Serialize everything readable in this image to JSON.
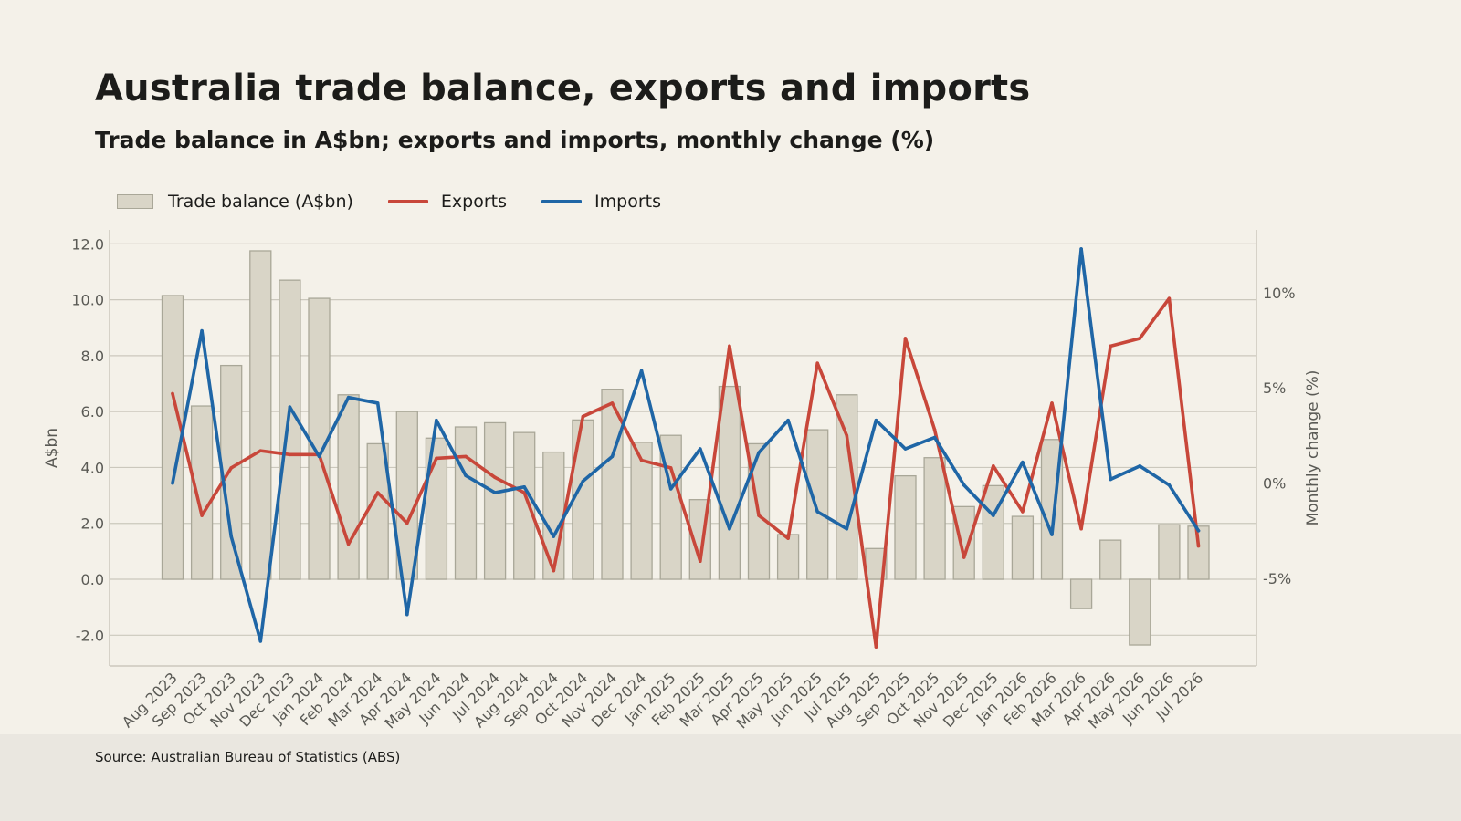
{
  "header": {
    "title": "Australia trade balance, exports and imports",
    "subtitle": "Trade balance in A$bn; exports and imports, monthly change (%)"
  },
  "footer": {
    "source": "Source: Australian Bureau of Statistics (ABS)"
  },
  "colors": {
    "bar_fill": "#d9d5c7",
    "bar_stroke": "#a9a798",
    "exports": "#c8473a",
    "imports": "#1f66a6",
    "grid": "#cbc8bd",
    "axis_text": "#5a5a55"
  },
  "chart_data": {
    "type": "bar",
    "categories": [
      "Aug 2023",
      "Sep 2023",
      "Oct 2023",
      "Nov 2023",
      "Dec 2023",
      "Jan 2024",
      "Feb 2024",
      "Mar 2024",
      "Apr 2024",
      "May 2024",
      "Jun 2024",
      "Jul 2024",
      "Aug 2024",
      "Sep 2024",
      "Oct 2024",
      "Nov 2024",
      "Dec 2024",
      "Jan 2025",
      "Feb 2025",
      "Mar 2025",
      "Apr 2025",
      "May 2025",
      "Jun 2025",
      "Jul 2025",
      "Aug 2025",
      "Sep 2025",
      "Oct 2025",
      "Nov 2025",
      "Dec 2025",
      "Jan 2026",
      "Feb 2026",
      "Mar 2026",
      "Apr 2026",
      "May 2026",
      "Jun 2026",
      "Jul 2026"
    ],
    "legend": [
      "Trade balance (A$bn)",
      "Exports",
      "Imports"
    ],
    "legend_position": "top-left",
    "grid": true,
    "series": [
      {
        "name": "Trade balance (A$bn)",
        "type": "bar",
        "axis": "left",
        "values": [
          10.15,
          6.2,
          7.65,
          11.75,
          10.7,
          10.05,
          6.6,
          4.85,
          6.0,
          5.05,
          5.45,
          5.6,
          5.25,
          4.55,
          5.7,
          6.8,
          4.9,
          5.15,
          2.85,
          6.9,
          4.85,
          1.6,
          5.35,
          6.6,
          1.1,
          3.7,
          4.35,
          2.6,
          3.35,
          2.25,
          5.0,
          -1.05,
          1.4,
          -2.35,
          1.95,
          1.9
        ]
      },
      {
        "name": "Exports",
        "type": "line",
        "axis": "right",
        "values": [
          4.7,
          -1.7,
          0.8,
          1.7,
          1.5,
          1.5,
          -3.2,
          -0.5,
          -2.1,
          1.3,
          1.4,
          0.3,
          -0.5,
          -4.6,
          3.5,
          4.2,
          1.2,
          0.8,
          -4.1,
          7.2,
          -1.7,
          -2.9,
          6.3,
          2.5,
          -8.6,
          7.6,
          2.8,
          -3.9,
          0.9,
          -1.5,
          4.2,
          -2.4,
          7.2,
          7.6,
          9.7,
          -3.3
        ]
      },
      {
        "name": "Imports",
        "type": "line",
        "axis": "right",
        "values": [
          0.0,
          8.0,
          -2.8,
          -8.3,
          4.0,
          1.4,
          4.5,
          4.2,
          -6.9,
          3.3,
          0.4,
          -0.5,
          -0.2,
          -2.8,
          0.1,
          1.4,
          5.9,
          -0.3,
          1.8,
          -2.4,
          1.6,
          3.3,
          -1.5,
          -2.4,
          3.3,
          1.8,
          2.4,
          -0.1,
          -1.7,
          1.1,
          -2.7,
          12.3,
          0.2,
          0.9,
          -0.1,
          -2.5
        ]
      }
    ],
    "y_left": {
      "label": "A$bn",
      "ylim": [
        -3.1,
        12.5
      ],
      "ticks": [
        -2.0,
        0.0,
        2.0,
        4.0,
        6.0,
        8.0,
        10.0,
        12.0
      ],
      "tick_labels": [
        "-2.0",
        "0.0",
        "2.0",
        "4.0",
        "6.0",
        "8.0",
        "10.0",
        "12.0"
      ]
    },
    "y_right": {
      "label": "Monthly change (%)",
      "ylim": [
        -9.6,
        13.3
      ],
      "ticks": [
        -5,
        0,
        5,
        10
      ],
      "tick_labels": [
        "-5%",
        "0%",
        "5%",
        "10%"
      ]
    }
  }
}
